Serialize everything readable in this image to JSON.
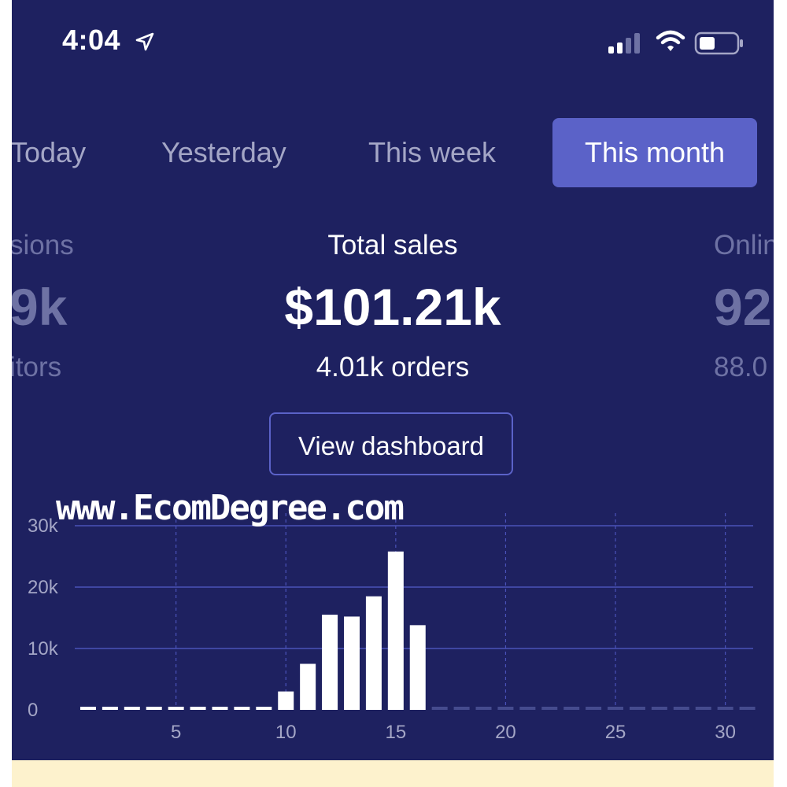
{
  "status_bar": {
    "time": "4:04",
    "icons": [
      "location-arrow-icon",
      "cellular-signal-icon",
      "wifi-icon",
      "battery-icon"
    ]
  },
  "tabs": [
    {
      "label": "Today",
      "active": false
    },
    {
      "label": "Yesterday",
      "active": false
    },
    {
      "label": "This week",
      "active": false
    },
    {
      "label": "This month",
      "active": true
    }
  ],
  "metrics": {
    "left": {
      "title": "sions",
      "value": "9k",
      "sub": "itors"
    },
    "center": {
      "title": "Total sales",
      "value": "$101.21k",
      "sub": "4.01k orders"
    },
    "right": {
      "title": "Onlin",
      "value": "92",
      "sub": "88.0"
    }
  },
  "dashboard_button": "View dashboard",
  "watermark": "www.EcomDegree.com",
  "colors": {
    "background": "#1e2160",
    "accent": "#5b62c8",
    "muted_text": "#a4a6c6",
    "bars": "#ffffff",
    "footer": "#fdf2cd"
  },
  "chart_data": {
    "type": "bar",
    "x": [
      1,
      2,
      3,
      4,
      5,
      6,
      7,
      8,
      9,
      10,
      11,
      12,
      13,
      14,
      15,
      16,
      17,
      18,
      19,
      20,
      21,
      22,
      23,
      24,
      25,
      26,
      27,
      28,
      29,
      30,
      31
    ],
    "values": [
      300,
      300,
      300,
      300,
      300,
      300,
      300,
      300,
      300,
      3000,
      7500,
      15500,
      15200,
      18500,
      25800,
      13800,
      300,
      300,
      300,
      300,
      300,
      300,
      300,
      300,
      300,
      300,
      300,
      300,
      300,
      300,
      300
    ],
    "future_from_index": 16,
    "ylim": [
      0,
      30000
    ],
    "yticks": [
      0,
      10000,
      20000,
      30000
    ],
    "ytick_labels": [
      "0",
      "10k",
      "20k",
      "30k"
    ],
    "xticks": [
      5,
      10,
      15,
      20,
      25,
      30
    ],
    "xtick_labels": [
      "5",
      "10",
      "15",
      "20",
      "25",
      "30"
    ],
    "grid": true
  }
}
